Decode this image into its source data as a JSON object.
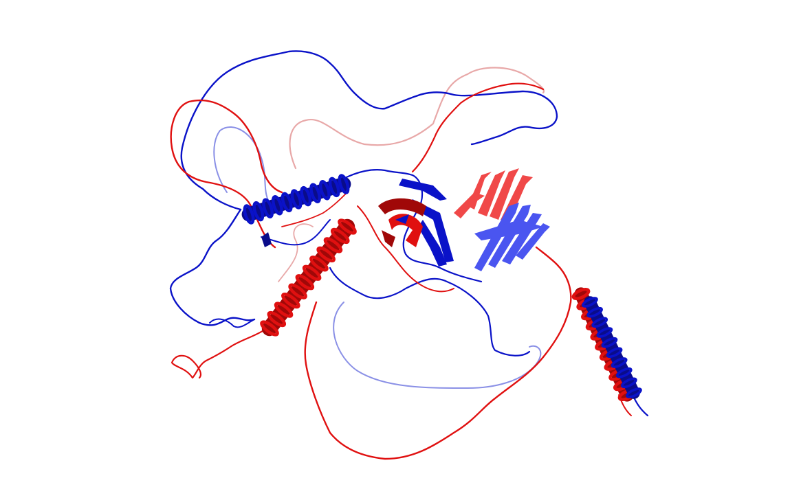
{
  "scene": {
    "background": "#ffffff",
    "chain_a_color": "#0a12c8",
    "chain_b_color": "#e01010",
    "chain_a_faded": "#8a90e6",
    "chain_b_faded": "#e8a8a8",
    "chain_a_sheet": "#4a55f0",
    "chain_b_sheet": "#f04848",
    "chain_a_dark": "#0a0c8a",
    "chain_b_dark": "#a00808"
  }
}
